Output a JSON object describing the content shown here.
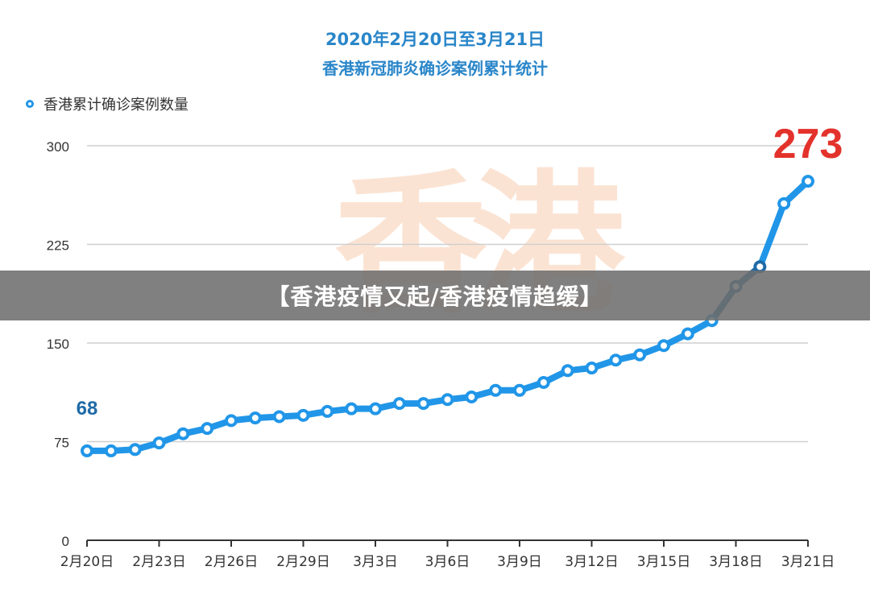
{
  "title_line1": "2020年2月20日至3月21日",
  "title_line2": "香港新冠肺炎确诊案例累计统计",
  "watermark": "香港",
  "banner_text": "【香港疫情又起/香港疫情趋缓】",
  "colors": {
    "line": "#2196e8",
    "line_dark": "#1f6aa6",
    "title": "#2a86c9",
    "start_label": "#1f6aa6",
    "end_label": "#e3322b",
    "watermark": "#fbe3d3"
  },
  "chart_data": {
    "type": "line",
    "title": "2020年2月20日至3月21日 香港新冠肺炎确诊案例累计统计",
    "legend": "香港累计确诊案例数量",
    "legend_position": "top-left",
    "grid": true,
    "ylim": [
      0,
      300
    ],
    "yticks": [
      "0",
      "75",
      "150",
      "225",
      "300"
    ],
    "xtick_labels": [
      "2月20日",
      "2月23日",
      "2月26日",
      "2月29日",
      "3月3日",
      "3月6日",
      "3月9日",
      "3月12日",
      "3月15日",
      "3月18日",
      "3月21日"
    ],
    "x": [
      "2月20日",
      "2月21日",
      "2月22日",
      "2月23日",
      "2月24日",
      "2月25日",
      "2月26日",
      "2月27日",
      "2月28日",
      "2月29日",
      "3月1日",
      "3月2日",
      "3月3日",
      "3月4日",
      "3月5日",
      "3月6日",
      "3月7日",
      "3月8日",
      "3月9日",
      "3月10日",
      "3月11日",
      "3月12日",
      "3月13日",
      "3月14日",
      "3月15日",
      "3月16日",
      "3月17日",
      "3月18日",
      "3月19日",
      "3月20日",
      "3月21日"
    ],
    "series": [
      {
        "name": "香港累计确诊案例数量",
        "values": [
          68,
          68,
          69,
          74,
          81,
          85,
          91,
          93,
          94,
          95,
          98,
          100,
          100,
          104,
          104,
          107,
          109,
          114,
          114,
          120,
          129,
          131,
          137,
          141,
          148,
          157,
          167,
          193,
          208,
          256,
          273
        ]
      }
    ],
    "annotations": {
      "start": "68",
      "end": "273"
    }
  }
}
